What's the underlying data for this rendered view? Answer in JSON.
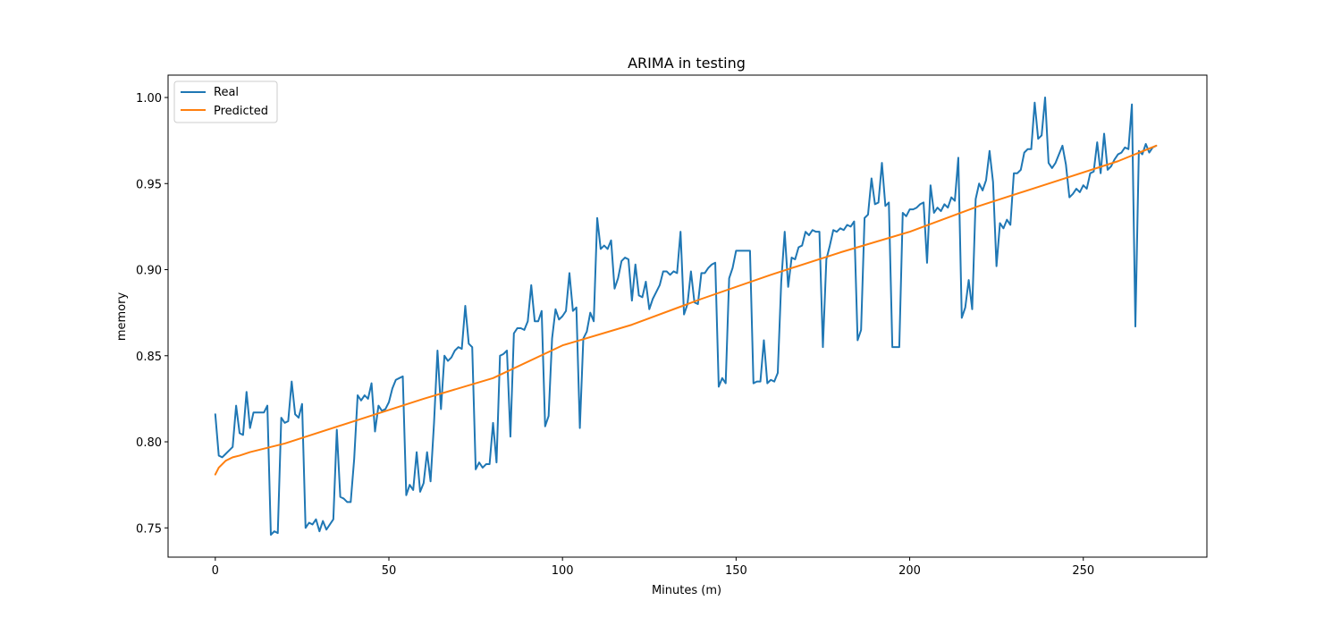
{
  "chart_data": {
    "type": "line",
    "title": "ARIMA in testing",
    "xlabel": "Minutes (m)",
    "ylabel": "memory",
    "xlim": [
      -13.6,
      285.6
    ],
    "ylim": [
      0.733,
      1.013
    ],
    "xticks": [
      0,
      50,
      100,
      150,
      200,
      250
    ],
    "yticks": [
      0.75,
      0.8,
      0.85,
      0.9,
      0.95,
      1.0
    ],
    "ytick_labels": [
      "0.75",
      "0.80",
      "0.85",
      "0.90",
      "0.95",
      "1.00"
    ],
    "grid": false,
    "legend": {
      "placement": "top-left"
    },
    "series": [
      {
        "name": "Real",
        "color": "#1f77b4",
        "x_start": 0,
        "x_step": 1,
        "values": [
          0.816,
          0.792,
          0.791,
          0.793,
          0.795,
          0.797,
          0.821,
          0.805,
          0.804,
          0.829,
          0.808,
          0.817,
          0.817,
          0.817,
          0.817,
          0.821,
          0.746,
          0.748,
          0.747,
          0.814,
          0.811,
          0.812,
          0.835,
          0.816,
          0.814,
          0.822,
          0.75,
          0.753,
          0.752,
          0.755,
          0.748,
          0.754,
          0.749,
          0.752,
          0.755,
          0.807,
          0.768,
          0.767,
          0.765,
          0.765,
          0.79,
          0.827,
          0.824,
          0.827,
          0.825,
          0.834,
          0.806,
          0.821,
          0.818,
          0.819,
          0.823,
          0.831,
          0.836,
          0.837,
          0.838,
          0.769,
          0.775,
          0.772,
          0.794,
          0.771,
          0.776,
          0.794,
          0.777,
          0.811,
          0.853,
          0.819,
          0.85,
          0.847,
          0.849,
          0.853,
          0.855,
          0.854,
          0.879,
          0.857,
          0.855,
          0.784,
          0.788,
          0.785,
          0.787,
          0.787,
          0.811,
          0.788,
          0.85,
          0.851,
          0.853,
          0.803,
          0.863,
          0.866,
          0.866,
          0.865,
          0.87,
          0.891,
          0.87,
          0.87,
          0.876,
          0.809,
          0.815,
          0.86,
          0.877,
          0.871,
          0.873,
          0.876,
          0.898,
          0.876,
          0.878,
          0.808,
          0.86,
          0.864,
          0.875,
          0.87,
          0.93,
          0.912,
          0.914,
          0.912,
          0.917,
          0.889,
          0.895,
          0.905,
          0.907,
          0.906,
          0.882,
          0.903,
          0.885,
          0.884,
          0.893,
          0.877,
          0.883,
          0.887,
          0.891,
          0.899,
          0.899,
          0.897,
          0.899,
          0.898,
          0.922,
          0.874,
          0.88,
          0.899,
          0.881,
          0.88,
          0.898,
          0.898,
          0.901,
          0.903,
          0.904,
          0.832,
          0.837,
          0.834,
          0.895,
          0.901,
          0.911,
          0.911,
          0.911,
          0.911,
          0.911,
          0.834,
          0.835,
          0.835,
          0.859,
          0.834,
          0.836,
          0.835,
          0.84,
          0.893,
          0.922,
          0.89,
          0.907,
          0.906,
          0.913,
          0.914,
          0.922,
          0.92,
          0.923,
          0.922,
          0.922,
          0.855,
          0.906,
          0.914,
          0.923,
          0.922,
          0.924,
          0.923,
          0.926,
          0.925,
          0.928,
          0.859,
          0.865,
          0.93,
          0.932,
          0.953,
          0.938,
          0.939,
          0.962,
          0.937,
          0.939,
          0.855,
          0.855,
          0.855,
          0.933,
          0.931,
          0.935,
          0.935,
          0.936,
          0.938,
          0.939,
          0.904,
          0.949,
          0.933,
          0.936,
          0.934,
          0.938,
          0.936,
          0.942,
          0.94,
          0.965,
          0.872,
          0.878,
          0.894,
          0.877,
          0.941,
          0.95,
          0.946,
          0.952,
          0.969,
          0.951,
          0.902,
          0.927,
          0.924,
          0.929,
          0.926,
          0.956,
          0.956,
          0.958,
          0.968,
          0.97,
          0.97,
          0.997,
          0.976,
          0.978,
          1.0,
          0.962,
          0.959,
          0.962,
          0.967,
          0.972,
          0.961,
          0.942,
          0.944,
          0.947,
          0.945,
          0.949,
          0.947,
          0.956,
          0.957,
          0.974,
          0.956,
          0.979,
          0.958,
          0.96,
          0.964,
          0.967,
          0.968,
          0.971,
          0.97,
          0.996,
          0.867,
          0.969,
          0.967,
          0.973,
          0.968,
          0.971,
          0.972
        ]
      },
      {
        "name": "Predicted",
        "color": "#ff7f0e",
        "x": [
          0,
          1,
          2,
          3,
          4,
          5,
          7,
          10,
          20,
          40,
          60,
          80,
          100,
          120,
          140,
          160,
          180,
          200,
          220,
          240,
          260,
          271
        ],
        "values": [
          0.781,
          0.785,
          0.787,
          0.789,
          0.79,
          0.791,
          0.792,
          0.794,
          0.799,
          0.812,
          0.825,
          0.837,
          0.856,
          0.868,
          0.883,
          0.897,
          0.91,
          0.922,
          0.937,
          0.95,
          0.963,
          0.972
        ]
      }
    ]
  }
}
